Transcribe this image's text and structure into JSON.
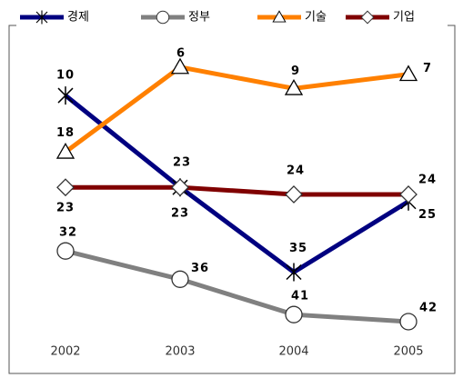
{
  "chart_data": {
    "type": "line",
    "categories": [
      "2002",
      "2003",
      "2004",
      "2005"
    ],
    "series": [
      {
        "name": "경제",
        "color": "#000080",
        "marker": "asterisk",
        "values": [
          10,
          23,
          35,
          25
        ]
      },
      {
        "name": "정부",
        "color": "#808080",
        "marker": "circle",
        "values": [
          32,
          36,
          41,
          42
        ]
      },
      {
        "name": "기술",
        "color": "#ff8000",
        "marker": "triangle",
        "values": [
          18,
          6,
          9,
          7
        ]
      },
      {
        "name": "기업",
        "color": "#800000",
        "marker": "diamond",
        "values": [
          23,
          23,
          24,
          24
        ]
      }
    ],
    "ylim": [
      0,
      45
    ],
    "y_reversed": true,
    "legend": "top"
  }
}
